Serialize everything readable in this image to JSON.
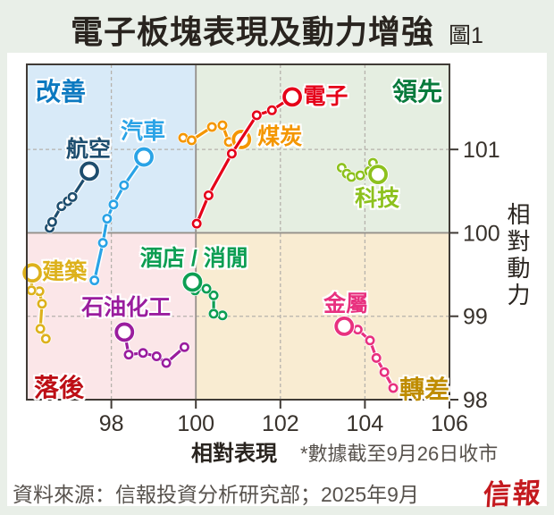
{
  "page": {
    "title": "電子板塊表現及動力增強",
    "figure_tag": "圖1",
    "xaxis_label": "相對表現",
    "yaxis_label": "相對動力",
    "footnote": "*數據截至9月26日收市",
    "source": "資料來源：信報投資分析研究部；2025年9月",
    "logo": "信報"
  },
  "chart_data": {
    "type": "scatter",
    "subtype": "relative-rotation-trails",
    "title": "電子板塊表現及動力增強",
    "xlabel": "相對表現",
    "ylabel": "相對動力",
    "xlim": [
      96,
      106
    ],
    "ylim": [
      98,
      102.02
    ],
    "xticks": [
      98,
      100,
      102,
      104,
      106
    ],
    "yticks": [
      98,
      99,
      100,
      101
    ],
    "center": [
      100,
      100
    ],
    "legend_position": "labels next to each trail head",
    "grid": "dashed gridlines at x=98,102,104 and y=99,101; solid crosshair at x=100,y=100",
    "axis_colors": {
      "border": "#403b36",
      "tick_text": "#38322c",
      "dashed_grid": "#b6b2ac",
      "crosshair": "#95908a"
    },
    "quadrants": [
      {
        "id": "improving",
        "label": "改善",
        "text_color": "#0c79c0",
        "bg": "#d8eaf8",
        "corner": "top-left"
      },
      {
        "id": "leading",
        "label": "領先",
        "text_color": "#087a3c",
        "bg": "#e5eee1",
        "corner": "top-right"
      },
      {
        "id": "lagging",
        "label": "落後",
        "text_color": "#bd0e15",
        "bg": "#fbe6e8",
        "corner": "bottom-left"
      },
      {
        "id": "weakening",
        "label": "轉差",
        "text_color": "#bf8c00",
        "bg": "#f9ecd2",
        "corner": "bottom-right"
      }
    ],
    "series": [
      {
        "id": "coal",
        "label": "煤炭",
        "color": "#f49600",
        "label_pos": [
          101.99,
          101.17
        ],
        "points": [
          [
            99.7,
            101.14
          ],
          [
            99.9,
            101.11
          ],
          [
            100.38,
            101.27
          ],
          [
            100.63,
            101.29
          ],
          [
            100.78,
            101.09
          ],
          [
            101.08,
            101.12
          ]
        ]
      },
      {
        "id": "technology",
        "label": "科技",
        "color": "#8dc11e",
        "label_pos": [
          104.29,
          100.43
        ],
        "points": [
          [
            103.45,
            100.78
          ],
          [
            103.57,
            100.71
          ],
          [
            103.68,
            100.67
          ],
          [
            103.89,
            100.69
          ],
          [
            104.1,
            100.74
          ],
          [
            104.19,
            100.84
          ],
          [
            104.31,
            100.7
          ]
        ]
      },
      {
        "id": "aviation",
        "label": "航空",
        "color": "#1d4d6e",
        "label_pos": [
          97.46,
          101.02
        ],
        "points": [
          [
            96.54,
            100.06
          ],
          [
            96.6,
            100.13
          ],
          [
            96.82,
            100.32
          ],
          [
            96.97,
            100.38
          ],
          [
            97.08,
            100.43
          ],
          [
            97.48,
            100.74
          ]
        ]
      },
      {
        "id": "automobile",
        "label": "汽車",
        "color": "#2aa3e6",
        "label_pos": [
          98.75,
          101.24
        ],
        "points": [
          [
            97.6,
            99.43
          ],
          [
            97.8,
            99.88
          ],
          [
            97.9,
            100.17
          ],
          [
            98.05,
            100.34
          ],
          [
            98.3,
            100.57
          ],
          [
            98.77,
            100.91
          ]
        ]
      },
      {
        "id": "construction",
        "label": "建築",
        "color": "#ddb11c",
        "label_pos": [
          96.89,
          99.55
        ],
        "points": [
          [
            96.45,
            98.73
          ],
          [
            96.32,
            98.85
          ],
          [
            96.36,
            99.15
          ],
          [
            96.3,
            99.3
          ],
          [
            96.11,
            99.31
          ],
          [
            96.13,
            99.52
          ]
        ]
      },
      {
        "id": "petrochemical",
        "label": "石油化工",
        "color": "#9a1d9e",
        "label_pos": [
          98.35,
          99.13
        ],
        "points": [
          [
            99.73,
            98.63
          ],
          [
            99.3,
            98.44
          ],
          [
            99.07,
            98.52
          ],
          [
            98.75,
            98.56
          ],
          [
            98.41,
            98.54
          ],
          [
            98.31,
            98.81
          ]
        ]
      },
      {
        "id": "hotel-leisure",
        "label": "酒店 / 消閒",
        "color": "#0d9e53",
        "label_pos": [
          99.96,
          99.72
        ],
        "points": [
          [
            100.63,
            99.01
          ],
          [
            100.42,
            99.03
          ],
          [
            100.42,
            99.25
          ],
          [
            100.25,
            99.33
          ],
          [
            99.98,
            99.31
          ],
          [
            99.92,
            99.41
          ]
        ]
      },
      {
        "id": "metals",
        "label": "金屬",
        "color": "#e8317f",
        "label_pos": [
          103.55,
          99.17
        ],
        "points": [
          [
            104.67,
            98.14
          ],
          [
            104.46,
            98.33
          ],
          [
            104.27,
            98.5
          ],
          [
            104.12,
            98.71
          ],
          [
            103.83,
            98.84
          ],
          [
            103.51,
            98.88
          ]
        ]
      },
      {
        "id": "electronics",
        "label": "電子",
        "color": "#e50019",
        "label_pos": [
          103.07,
          101.66
        ],
        "points": [
          [
            100.02,
            100.11
          ],
          [
            100.3,
            100.45
          ],
          [
            100.85,
            100.95
          ],
          [
            101.44,
            101.41
          ],
          [
            101.8,
            101.47
          ],
          [
            102.28,
            101.63
          ]
        ]
      }
    ]
  }
}
